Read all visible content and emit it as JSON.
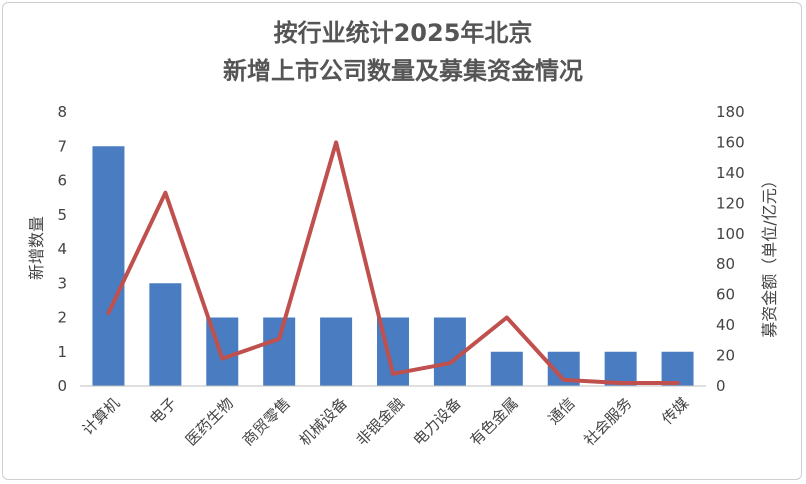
{
  "chart_data": {
    "type": "bar+line",
    "title_line1": "按行业统计2025年北京",
    "title_line2": "新增上市公司数量及募集资金情况",
    "categories": [
      "计算机",
      "电子",
      "医药生物",
      "商贸零售",
      "机械设备",
      "非银金融",
      "电力设备",
      "有色金属",
      "通信",
      "社会服务",
      "传媒"
    ],
    "series": [
      {
        "name": "新增数量",
        "type": "bar",
        "axis": "left",
        "values": [
          7,
          3,
          2,
          2,
          2,
          2,
          2,
          1,
          1,
          1,
          1
        ]
      },
      {
        "name": "募资金额",
        "type": "line",
        "axis": "right",
        "values": [
          48,
          127,
          18,
          31,
          160,
          8,
          15,
          45,
          4,
          2,
          2
        ]
      }
    ],
    "ylabel_left": "新增数量",
    "ylabel_right": "募资金额（单位/亿元）",
    "ylim_left": [
      0,
      8
    ],
    "yticks_left": [
      "0",
      "1",
      "2",
      "3",
      "4",
      "5",
      "6",
      "7",
      "8"
    ],
    "ylim_right": [
      0,
      180
    ],
    "yticks_right": [
      "0",
      "20",
      "40",
      "60",
      "80",
      "100",
      "120",
      "140",
      "160",
      "180"
    ],
    "grid": false,
    "legend": "none",
    "colors": {
      "bar": "#4a7cc1",
      "line": "#c0504d",
      "title": "#555555",
      "text": "#444444"
    }
  }
}
